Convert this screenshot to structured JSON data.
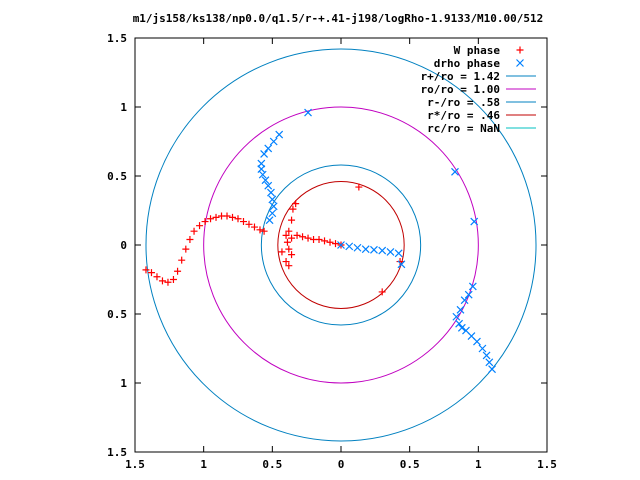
{
  "chart_data": {
    "type": "scatter",
    "title": "m1/js158/ks138/np0.0/q1.5/r-+.41-j198/logRho-1.9133/M10.00/512",
    "xlabel": "",
    "ylabel": "",
    "xlim": [
      -1.5,
      1.5
    ],
    "ylim": [
      -1.5,
      1.5
    ],
    "x_ticks": [
      -1.5,
      -1,
      -0.5,
      0,
      0.5,
      1,
      1.5
    ],
    "x_tick_labels": [
      "1.5",
      "1",
      "0.5",
      "0",
      "0.5",
      "1",
      "1.5"
    ],
    "y_ticks": [
      1.5,
      1,
      0.5,
      0,
      -0.5,
      -1,
      -1.5
    ],
    "y_tick_labels": [
      "1.5",
      "1",
      "0.5",
      "0",
      "0.5",
      "1",
      "1.5"
    ],
    "grid": false,
    "legend_position": "top-right",
    "series": [
      {
        "name": "W phase",
        "marker": "plus",
        "color": "#ff0000",
        "points": [
          [
            -1.42,
            -0.18
          ],
          [
            -1.38,
            -0.2
          ],
          [
            -1.34,
            -0.23
          ],
          [
            -1.3,
            -0.26
          ],
          [
            -1.26,
            -0.27
          ],
          [
            -1.22,
            -0.25
          ],
          [
            -1.19,
            -0.19
          ],
          [
            -1.16,
            -0.11
          ],
          [
            -1.13,
            -0.03
          ],
          [
            -1.1,
            0.04
          ],
          [
            -1.07,
            0.1
          ],
          [
            -1.03,
            0.14
          ],
          [
            -0.99,
            0.17
          ],
          [
            -0.95,
            0.19
          ],
          [
            -0.91,
            0.2
          ],
          [
            -0.87,
            0.21
          ],
          [
            -0.83,
            0.21
          ],
          [
            -0.79,
            0.2
          ],
          [
            -0.75,
            0.19
          ],
          [
            -0.71,
            0.17
          ],
          [
            -0.67,
            0.15
          ],
          [
            -0.63,
            0.13
          ],
          [
            -0.59,
            0.11
          ],
          [
            -0.56,
            0.1
          ],
          [
            -0.4,
            0.07
          ],
          [
            -0.36,
            0.05
          ],
          [
            -0.32,
            0.07
          ],
          [
            -0.28,
            0.06
          ],
          [
            -0.24,
            0.05
          ],
          [
            -0.2,
            0.04
          ],
          [
            -0.16,
            0.04
          ],
          [
            -0.12,
            0.03
          ],
          [
            -0.08,
            0.02
          ],
          [
            -0.04,
            0.01
          ],
          [
            0.0,
            0.0
          ],
          [
            -0.36,
            0.18
          ],
          [
            -0.35,
            0.26
          ],
          [
            -0.33,
            0.3
          ],
          [
            -0.38,
            0.1
          ],
          [
            -0.39,
            0.02
          ],
          [
            -0.38,
            -0.03
          ],
          [
            -0.36,
            -0.07
          ],
          [
            -0.4,
            -0.12
          ],
          [
            -0.38,
            -0.15
          ],
          [
            0.13,
            0.42
          ],
          [
            0.3,
            -0.34
          ],
          [
            0.43,
            -0.12
          ],
          [
            -0.43,
            -0.05
          ]
        ]
      },
      {
        "name": "drho phase",
        "marker": "cross",
        "color": "#0080ff",
        "points": [
          [
            -0.58,
            0.59
          ],
          [
            -0.58,
            0.55
          ],
          [
            -0.57,
            0.51
          ],
          [
            -0.55,
            0.47
          ],
          [
            -0.53,
            0.43
          ],
          [
            -0.51,
            0.38
          ],
          [
            -0.5,
            0.33
          ],
          [
            -0.49,
            0.28
          ],
          [
            -0.5,
            0.23
          ],
          [
            -0.52,
            0.18
          ],
          [
            -0.56,
            0.66
          ],
          [
            -0.53,
            0.7
          ],
          [
            -0.49,
            0.75
          ],
          [
            -0.45,
            0.8
          ],
          [
            -0.24,
            0.96
          ],
          [
            0.0,
            0.0
          ],
          [
            0.06,
            -0.01
          ],
          [
            0.12,
            -0.02
          ],
          [
            0.18,
            -0.03
          ],
          [
            0.24,
            -0.035
          ],
          [
            0.3,
            -0.04
          ],
          [
            0.36,
            -0.05
          ],
          [
            0.42,
            -0.06
          ],
          [
            0.44,
            -0.14
          ],
          [
            0.83,
            0.53
          ],
          [
            0.97,
            0.17
          ],
          [
            0.84,
            -0.52
          ],
          [
            0.86,
            -0.57
          ],
          [
            0.88,
            -0.6
          ],
          [
            0.91,
            -0.62
          ],
          [
            0.95,
            -0.66
          ],
          [
            0.99,
            -0.7
          ],
          [
            1.03,
            -0.75
          ],
          [
            1.06,
            -0.8
          ],
          [
            1.08,
            -0.85
          ],
          [
            1.1,
            -0.9
          ],
          [
            0.87,
            -0.47
          ],
          [
            0.9,
            -0.4
          ],
          [
            0.93,
            -0.36
          ],
          [
            0.96,
            -0.3
          ]
        ]
      }
    ],
    "circles": [
      {
        "name": "r+/ro = 1.42",
        "radius": 1.42,
        "color": "#0080c0"
      },
      {
        "name": "ro/ro = 1.00",
        "radius": 1.0,
        "color": "#c000c0"
      },
      {
        "name": "r-/ro = .58",
        "radius": 0.58,
        "color": "#0080c0"
      },
      {
        "name": "r*/ro = .46",
        "radius": 0.46,
        "color": "#c00000"
      },
      {
        "name": "rc/ro = NaN",
        "radius": null,
        "color": "#00c0c0"
      }
    ],
    "legend": [
      {
        "label": "W phase",
        "kind": "marker",
        "marker": "plus",
        "color": "#ff0000"
      },
      {
        "label": "drho phase",
        "kind": "marker",
        "marker": "cross",
        "color": "#0080ff"
      },
      {
        "label": "r+/ro = 1.42",
        "kind": "line",
        "color": "#0080c0"
      },
      {
        "label": "ro/ro = 1.00",
        "kind": "line",
        "color": "#c000c0"
      },
      {
        "label": "r-/ro = .58",
        "kind": "line",
        "color": "#0080c0"
      },
      {
        "label": "r*/ro = .46",
        "kind": "line",
        "color": "#c00000"
      },
      {
        "label": "rc/ro = NaN",
        "kind": "line",
        "color": "#00c0c0"
      }
    ]
  }
}
